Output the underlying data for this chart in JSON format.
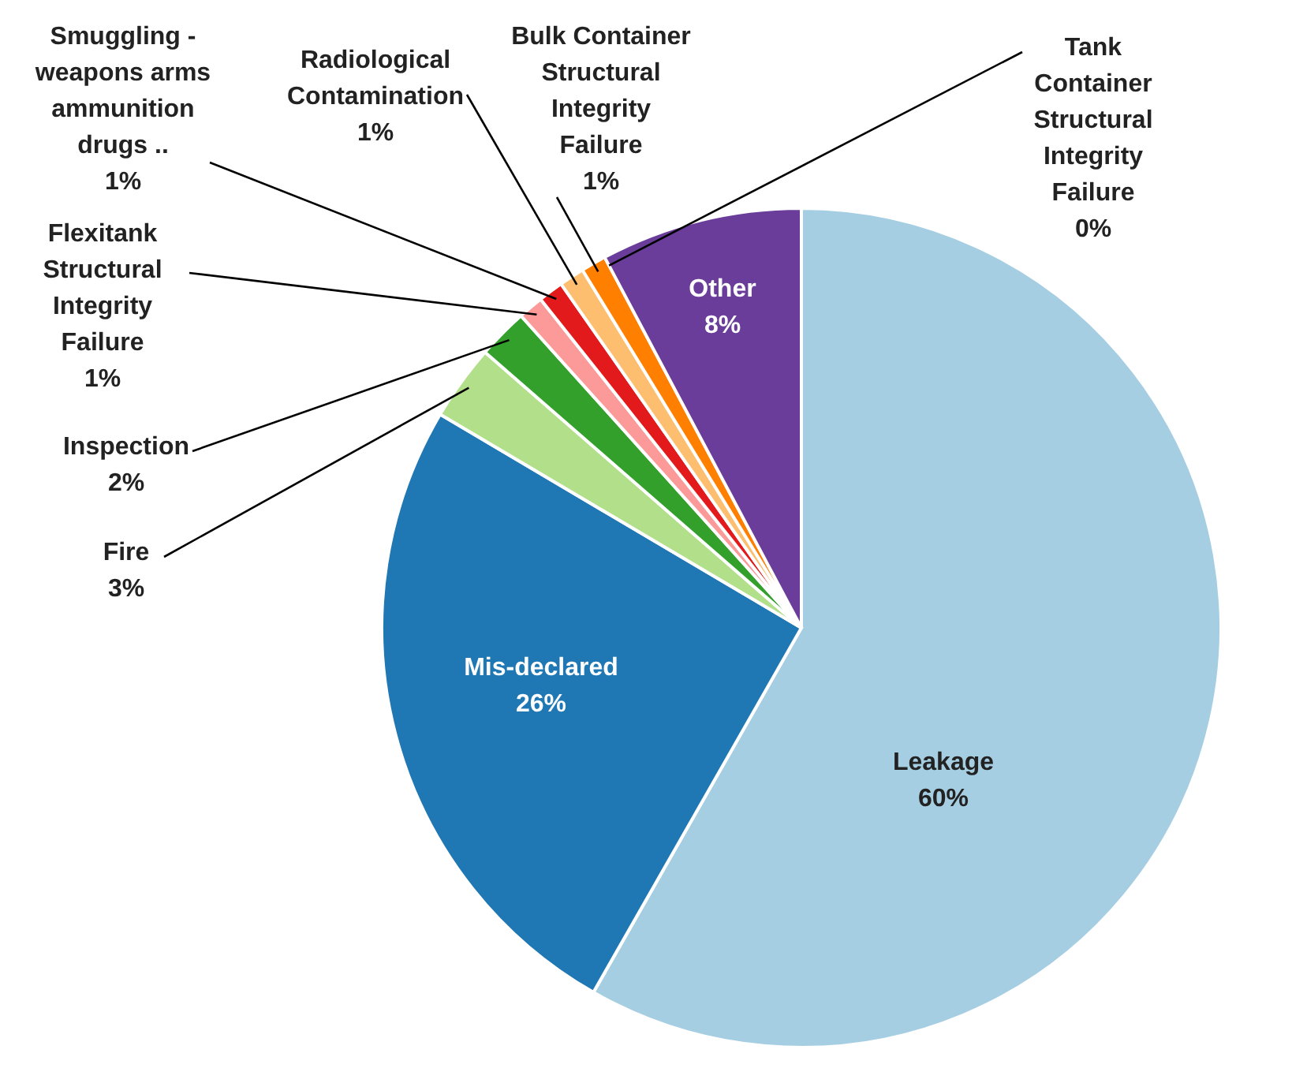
{
  "chart_data": {
    "type": "pie",
    "categories": [
      "Leakage",
      "Mis-declared",
      "Fire",
      "Inspection",
      "Flexitank Structural Integrity Failure",
      "Smuggling - weapons arms ammunition drugs ..",
      "Radiological Contamination",
      "Bulk Container Structural Integrity Failure",
      "Tank Container Structural Integrity Failure",
      "Other"
    ],
    "values": [
      60,
      26,
      3,
      2,
      1,
      1,
      1,
      1,
      0,
      8
    ],
    "value_labels": [
      "60%",
      "26%",
      "3%",
      "2%",
      "1%",
      "1%",
      "1%",
      "1%",
      "0%",
      "8%"
    ],
    "colors": [
      "#a6cee3",
      "#1f78b4",
      "#b2df8a",
      "#33a02c",
      "#fb9a99",
      "#e31a1c",
      "#fdbf6f",
      "#ff7f00",
      "#cab2d6",
      "#6a3d9a"
    ]
  }
}
